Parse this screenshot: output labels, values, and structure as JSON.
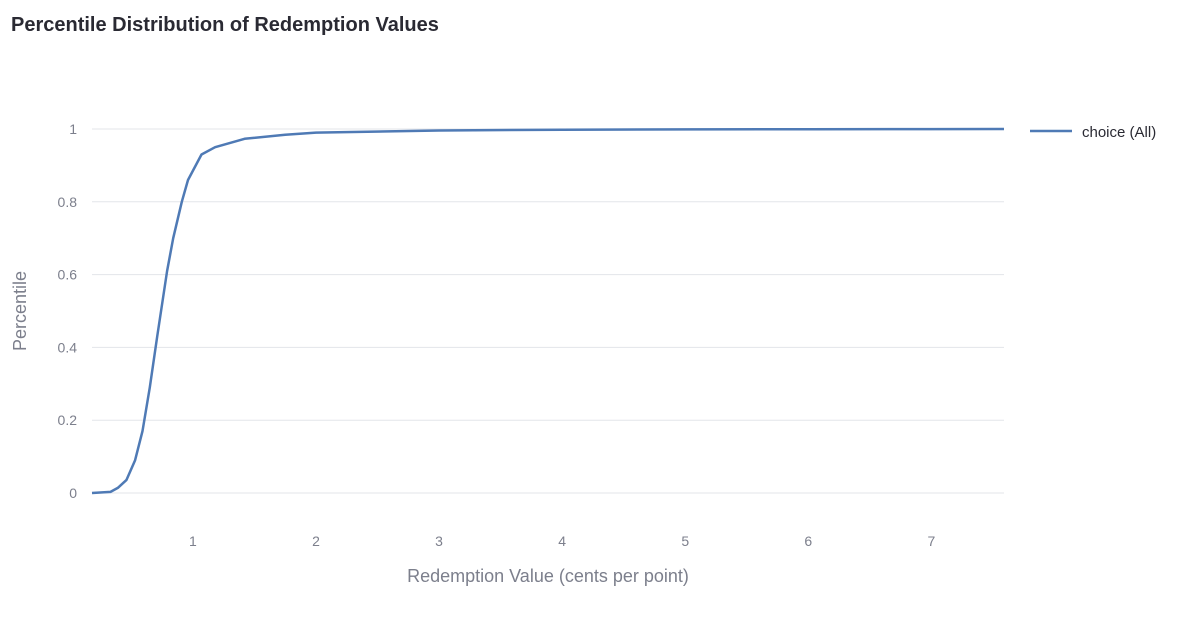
{
  "chart_data": {
    "type": "line",
    "title": "Percentile Distribution of Redemption Values",
    "xlabel": "Redemption Value (cents per point)",
    "ylabel": "Percentile",
    "xlim": [
      0.18,
      7.59
    ],
    "ylim": [
      0,
      1
    ],
    "xticks": [
      "1",
      "2",
      "3",
      "4",
      "5",
      "6",
      "7"
    ],
    "yticks": [
      "0",
      "0.2",
      "0.4",
      "0.6",
      "0.8",
      "1"
    ],
    "grid": true,
    "legend_position": "right",
    "series": [
      {
        "name": "choice (All)",
        "color": "#4f7ab5",
        "x": [
          0.18,
          0.33,
          0.39,
          0.46,
          0.53,
          0.59,
          0.65,
          0.71,
          0.79,
          0.84,
          0.91,
          0.96,
          1.07,
          1.18,
          1.42,
          1.75,
          2.0,
          3.0,
          4.0,
          5.0,
          6.0,
          7.0,
          7.59
        ],
        "y": [
          0,
          0.003,
          0.014,
          0.036,
          0.09,
          0.17,
          0.29,
          0.43,
          0.61,
          0.7,
          0.8,
          0.86,
          0.93,
          0.95,
          0.973,
          0.984,
          0.99,
          0.996,
          0.998,
          0.999,
          0.9995,
          0.9998,
          1.0
        ]
      }
    ]
  }
}
